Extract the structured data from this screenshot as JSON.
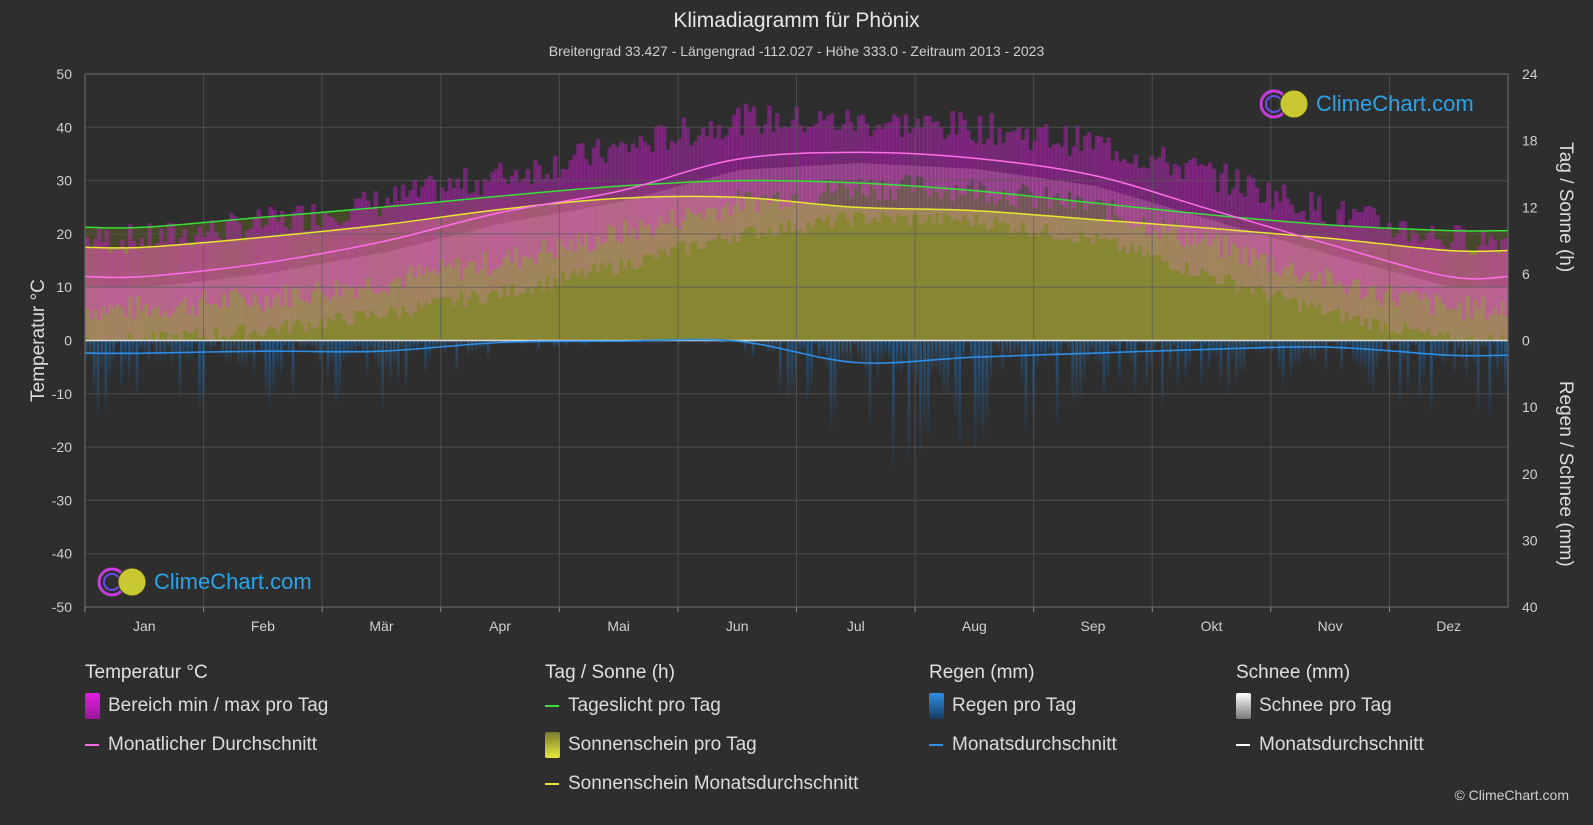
{
  "title": "Klimadiagramm für Phönix",
  "subtitle": "Breitengrad 33.427 - Längengrad -112.027 - Höhe 333.0 - Zeitraum 2013 - 2023",
  "logo_text": "ClimeChart.com",
  "copyright": "© ClimeChart.com",
  "colors": {
    "background": "#2e2e2e",
    "temp_range": "#d01fd0",
    "temp_avg": "#ff6ee8",
    "daylight": "#38e038",
    "sunshine_fill": "#a8a832",
    "sunshine_avg": "#e8e830",
    "rain": "#1f78c8",
    "rain_avg": "#2d8ee6",
    "snow": "#e8e8e8"
  },
  "legend": {
    "temperature": {
      "header": "Temperatur °C",
      "items": [
        {
          "label": "Bereich min / max pro Tag",
          "swatch": "box",
          "color": "#e020e0"
        },
        {
          "label": "Monatlicher Durchschnitt",
          "swatch": "line",
          "color": "#ff6ee8"
        }
      ]
    },
    "sun": {
      "header": "Tag / Sonne (h)",
      "items": [
        {
          "label": "Tageslicht pro Tag",
          "swatch": "line",
          "color": "#38e038"
        },
        {
          "label": "Sonnenschein pro Tag",
          "swatch": "box",
          "color": "#d8d83a"
        },
        {
          "label": "Sonnenschein Monatsdurchschnitt",
          "swatch": "line",
          "color": "#e8e830"
        }
      ]
    },
    "rain": {
      "header": "Regen (mm)",
      "items": [
        {
          "label": "Regen pro Tag",
          "swatch": "box",
          "color": "#1f78c8"
        },
        {
          "label": "Monatsdurchschnitt",
          "swatch": "line",
          "color": "#2d8ee6"
        }
      ]
    },
    "snow": {
      "header": "Schnee (mm)",
      "items": [
        {
          "label": "Schnee pro Tag",
          "swatch": "box",
          "color": "#dcdcdc"
        },
        {
          "label": "Monatsdurchschnitt",
          "swatch": "line",
          "color": "#ffffff"
        }
      ]
    }
  },
  "chart_data": {
    "type": "line",
    "categories": [
      "Jan",
      "Feb",
      "Mär",
      "Apr",
      "Mai",
      "Jun",
      "Jul",
      "Aug",
      "Sep",
      "Okt",
      "Nov",
      "Dez"
    ],
    "ylabel": "Temperatur °C",
    "y2label_top": "Tag / Sonne (h)",
    "y2label_bottom": "Regen / Schnee (mm)",
    "ylim": [
      -50,
      50
    ],
    "y_ticks": [
      50,
      40,
      30,
      20,
      10,
      0,
      -10,
      -20,
      -30,
      -40,
      -50
    ],
    "sun_ticks": [
      24,
      18,
      12,
      6,
      0
    ],
    "rain_ticks": [
      0,
      10,
      20,
      30,
      40
    ],
    "sun_range_h": [
      0,
      24
    ],
    "rain_range_mm": [
      0,
      40
    ],
    "grid": true,
    "series": [
      {
        "name": "Monatlicher Durchschnitt",
        "unit": "°C",
        "values": [
          12,
          14.5,
          18.5,
          24,
          28,
          34,
          35.3,
          34.2,
          31,
          24.5,
          18,
          12
        ]
      },
      {
        "name": "Tageslicht pro Tag",
        "unit": "h",
        "values": [
          10.2,
          11.1,
          12.0,
          13.0,
          13.9,
          14.4,
          14.2,
          13.5,
          12.4,
          11.3,
          10.4,
          9.9
        ]
      },
      {
        "name": "Sonnenschein Monatsdurchschnitt",
        "unit": "h",
        "values": [
          8.4,
          9.3,
          10.4,
          11.8,
          12.8,
          12.9,
          12.0,
          11.7,
          10.9,
          10.1,
          9.2,
          8.1
        ]
      },
      {
        "name": "Regen Monatsdurchschnitt",
        "unit": "mm",
        "values": [
          1.9,
          1.6,
          1.6,
          0.3,
          0.1,
          0.1,
          3.3,
          2.5,
          1.9,
          1.3,
          1.0,
          2.2
        ]
      },
      {
        "name": "Bereich min / max pro Tag (min)",
        "unit": "°C",
        "values": [
          6,
          8,
          11,
          15,
          20,
          26,
          29,
          28.5,
          25,
          18,
          11,
          6
        ]
      },
      {
        "name": "Bereich min / max pro Tag (max)",
        "unit": "°C",
        "values": [
          19,
          22,
          26,
          31,
          36,
          41.5,
          41,
          40,
          37,
          31,
          24,
          19
        ]
      }
    ]
  }
}
